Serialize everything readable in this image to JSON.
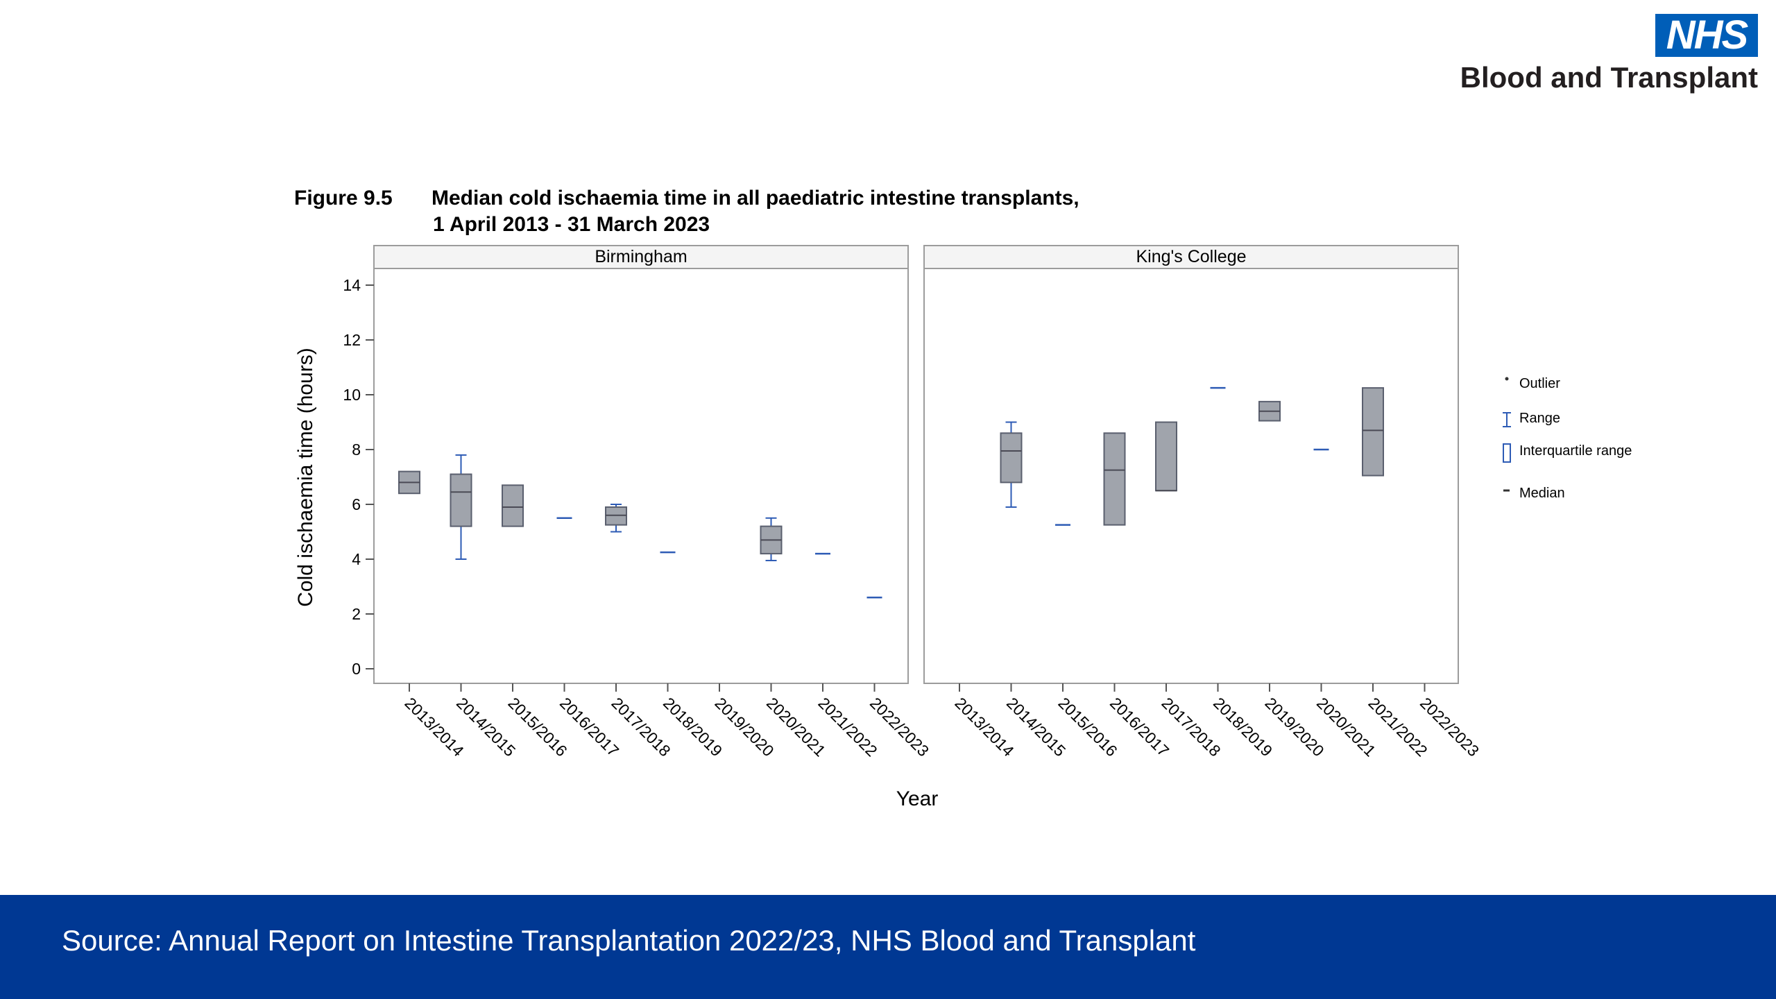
{
  "logo": {
    "badge": "NHS",
    "subtitle": "Blood and Transplant"
  },
  "footer": {
    "source": "Source: Annual Report on Intestine Transplantation 2022/23, NHS Blood and Transplant"
  },
  "chart_data": {
    "type": "box",
    "figure_label": "Figure 9.5",
    "title_line1": "Median cold ischaemia time in all paediatric intestine transplants,",
    "title_line2": "1 April 2013 - 31 March 2023",
    "xlabel": "Year",
    "ylabel": "Cold ischaemia time (hours)",
    "ylim": [
      0,
      14
    ],
    "yticks": [
      0,
      2,
      4,
      6,
      8,
      10,
      12,
      14
    ],
    "categories": [
      "2013/2014",
      "2014/2015",
      "2015/2016",
      "2016/2017",
      "2017/2018",
      "2018/2019",
      "2019/2020",
      "2020/2021",
      "2021/2022",
      "2022/2023"
    ],
    "legend": [
      {
        "key": "outlier",
        "label": "Outlier"
      },
      {
        "key": "range",
        "label": "Range"
      },
      {
        "key": "iqr",
        "label": "Interquartile range"
      },
      {
        "key": "median",
        "label": "Median"
      }
    ],
    "colors": {
      "box_fill": "#a0a4ac",
      "box_edge": "#5a5f6e",
      "whisker": "#2d5bb5",
      "median": "#4a4a55"
    },
    "panels": [
      {
        "name": "Birmingham",
        "boxes": [
          {
            "category": "2013/2014",
            "min": 6.4,
            "q1": 6.4,
            "median": 6.8,
            "q3": 7.2,
            "max": 7.2
          },
          {
            "category": "2014/2015",
            "min": 4.0,
            "q1": 5.2,
            "median": 6.45,
            "q3": 7.1,
            "max": 7.8
          },
          {
            "category": "2015/2016",
            "min": 5.2,
            "q1": 5.2,
            "median": 5.9,
            "q3": 6.7,
            "max": 6.7
          },
          {
            "category": "2016/2017",
            "min": 5.5,
            "q1": 5.5,
            "median": 5.5,
            "q3": 5.5,
            "max": 5.5
          },
          {
            "category": "2017/2018",
            "min": 5.0,
            "q1": 5.25,
            "median": 5.6,
            "q3": 5.9,
            "max": 6.0
          },
          {
            "category": "2018/2019",
            "min": 4.25,
            "q1": 4.25,
            "median": 4.25,
            "q3": 4.25,
            "max": 4.25
          },
          {
            "category": "2020/2021",
            "min": 3.95,
            "q1": 4.2,
            "median": 4.7,
            "q3": 5.2,
            "max": 5.5
          },
          {
            "category": "2021/2022",
            "min": 4.2,
            "q1": 4.2,
            "median": 4.2,
            "q3": 4.2,
            "max": 4.2
          },
          {
            "category": "2022/2023",
            "min": 2.6,
            "q1": 2.6,
            "median": 2.6,
            "q3": 2.6,
            "max": 2.6
          }
        ]
      },
      {
        "name": "King's College",
        "boxes": [
          {
            "category": "2014/2015",
            "min": 5.9,
            "q1": 6.8,
            "median": 7.95,
            "q3": 8.6,
            "max": 9.0
          },
          {
            "category": "2015/2016",
            "min": 5.25,
            "q1": 5.25,
            "median": 5.25,
            "q3": 5.25,
            "max": 5.25
          },
          {
            "category": "2016/2017",
            "min": 5.25,
            "q1": 5.25,
            "median": 7.25,
            "q3": 8.6,
            "max": 8.6
          },
          {
            "category": "2017/2018",
            "min": 6.5,
            "q1": 6.5,
            "median": 6.5,
            "q3": 9.0,
            "max": 9.0
          },
          {
            "category": "2018/2019",
            "min": 10.25,
            "q1": 10.25,
            "median": 10.25,
            "q3": 10.25,
            "max": 10.25
          },
          {
            "category": "2019/2020",
            "min": 9.05,
            "q1": 9.05,
            "median": 9.4,
            "q3": 9.75,
            "max": 9.75
          },
          {
            "category": "2020/2021",
            "min": 8.0,
            "q1": 8.0,
            "median": 8.0,
            "q3": 8.0,
            "max": 8.0
          },
          {
            "category": "2021/2022",
            "min": 7.05,
            "q1": 7.05,
            "median": 8.7,
            "q3": 10.25,
            "max": 10.25
          }
        ]
      }
    ]
  }
}
